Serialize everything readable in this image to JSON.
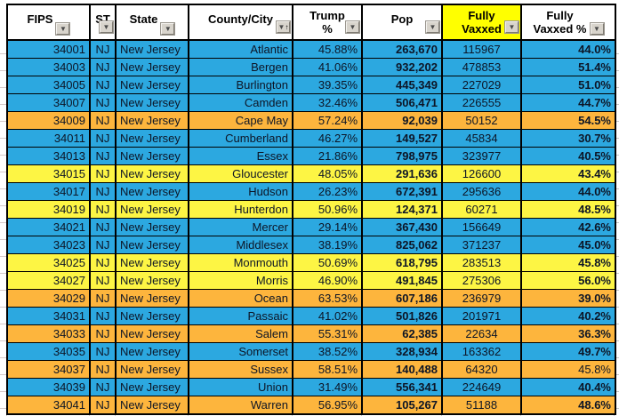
{
  "colors": {
    "blue": "#2ca8e0",
    "yellow": "#fdf544",
    "orange": "#fdb53d",
    "header_highlight": "#ffff00",
    "cell_border": "#000000",
    "gridline": "#c9c9c9"
  },
  "icons": {
    "filter_icon": "▼",
    "sort_asc_icon": "↑"
  },
  "table": {
    "columns": [
      {
        "id": "fips",
        "label": "FIPS",
        "align": "right",
        "btn": "inline"
      },
      {
        "id": "st",
        "label": "ST",
        "align": "center",
        "btn": "abs"
      },
      {
        "id": "state",
        "label": "State",
        "align": "left",
        "btn": "inline"
      },
      {
        "id": "county",
        "label": "County/City",
        "align": "right",
        "btn": "abs",
        "sorted": true
      },
      {
        "id": "trump",
        "label": "Trump\n%",
        "align": "right",
        "btn": "abs"
      },
      {
        "id": "pop",
        "label": "Pop",
        "align": "right",
        "btn": "abs",
        "bold": true
      },
      {
        "id": "vaxxed",
        "label": "Fully\nVaxxed",
        "align": "center",
        "btn": "abs",
        "header_bg": "#ffff00"
      },
      {
        "id": "vaxxedpct",
        "label": "Fully\nVaxxed %",
        "align": "right",
        "btn": "inline",
        "bold": true
      }
    ],
    "rows": [
      {
        "fips": "34001",
        "st": "NJ",
        "state": "New Jersey",
        "county": "Atlantic",
        "trump": "45.88%",
        "pop": "263,670",
        "vaxxed": "115967",
        "vaxxedpct": "44.0%",
        "color": "blue"
      },
      {
        "fips": "34003",
        "st": "NJ",
        "state": "New Jersey",
        "county": "Bergen",
        "trump": "41.06%",
        "pop": "932,202",
        "vaxxed": "478853",
        "vaxxedpct": "51.4%",
        "color": "blue"
      },
      {
        "fips": "34005",
        "st": "NJ",
        "state": "New Jersey",
        "county": "Burlington",
        "trump": "39.35%",
        "pop": "445,349",
        "vaxxed": "227029",
        "vaxxedpct": "51.0%",
        "color": "blue"
      },
      {
        "fips": "34007",
        "st": "NJ",
        "state": "New Jersey",
        "county": "Camden",
        "trump": "32.46%",
        "pop": "506,471",
        "vaxxed": "226555",
        "vaxxedpct": "44.7%",
        "color": "blue"
      },
      {
        "fips": "34009",
        "st": "NJ",
        "state": "New Jersey",
        "county": "Cape May",
        "trump": "57.24%",
        "pop": "92,039",
        "vaxxed": "50152",
        "vaxxedpct": "54.5%",
        "color": "orange"
      },
      {
        "fips": "34011",
        "st": "NJ",
        "state": "New Jersey",
        "county": "Cumberland",
        "trump": "46.27%",
        "pop": "149,527",
        "vaxxed": "45834",
        "vaxxedpct": "30.7%",
        "color": "blue"
      },
      {
        "fips": "34013",
        "st": "NJ",
        "state": "New Jersey",
        "county": "Essex",
        "trump": "21.86%",
        "pop": "798,975",
        "vaxxed": "323977",
        "vaxxedpct": "40.5%",
        "color": "blue"
      },
      {
        "fips": "34015",
        "st": "NJ",
        "state": "New Jersey",
        "county": "Gloucester",
        "trump": "48.05%",
        "pop": "291,636",
        "vaxxed": "126600",
        "vaxxedpct": "43.4%",
        "color": "yellow"
      },
      {
        "fips": "34017",
        "st": "NJ",
        "state": "New Jersey",
        "county": "Hudson",
        "trump": "26.23%",
        "pop": "672,391",
        "vaxxed": "295636",
        "vaxxedpct": "44.0%",
        "color": "blue"
      },
      {
        "fips": "34019",
        "st": "NJ",
        "state": "New Jersey",
        "county": "Hunterdon",
        "trump": "50.96%",
        "pop": "124,371",
        "vaxxed": "60271",
        "vaxxedpct": "48.5%",
        "color": "yellow"
      },
      {
        "fips": "34021",
        "st": "NJ",
        "state": "New Jersey",
        "county": "Mercer",
        "trump": "29.14%",
        "pop": "367,430",
        "vaxxed": "156649",
        "vaxxedpct": "42.6%",
        "color": "blue"
      },
      {
        "fips": "34023",
        "st": "NJ",
        "state": "New Jersey",
        "county": "Middlesex",
        "trump": "38.19%",
        "pop": "825,062",
        "vaxxed": "371237",
        "vaxxedpct": "45.0%",
        "color": "blue"
      },
      {
        "fips": "34025",
        "st": "NJ",
        "state": "New Jersey",
        "county": "Monmouth",
        "trump": "50.69%",
        "pop": "618,795",
        "vaxxed": "283513",
        "vaxxedpct": "45.8%",
        "color": "yellow"
      },
      {
        "fips": "34027",
        "st": "NJ",
        "state": "New Jersey",
        "county": "Morris",
        "trump": "46.90%",
        "pop": "491,845",
        "vaxxed": "275306",
        "vaxxedpct": "56.0%",
        "color": "yellow"
      },
      {
        "fips": "34029",
        "st": "NJ",
        "state": "New Jersey",
        "county": "Ocean",
        "trump": "63.53%",
        "pop": "607,186",
        "vaxxed": "236979",
        "vaxxedpct": "39.0%",
        "color": "orange"
      },
      {
        "fips": "34031",
        "st": "NJ",
        "state": "New Jersey",
        "county": "Passaic",
        "trump": "41.02%",
        "pop": "501,826",
        "vaxxed": "201971",
        "vaxxedpct": "40.2%",
        "color": "blue"
      },
      {
        "fips": "34033",
        "st": "NJ",
        "state": "New Jersey",
        "county": "Salem",
        "trump": "55.31%",
        "pop": "62,385",
        "vaxxed": "22634",
        "vaxxedpct": "36.3%",
        "color": "orange"
      },
      {
        "fips": "34035",
        "st": "NJ",
        "state": "New Jersey",
        "county": "Somerset",
        "trump": "38.52%",
        "pop": "328,934",
        "vaxxed": "163362",
        "vaxxedpct": "49.7%",
        "color": "blue"
      },
      {
        "fips": "34037",
        "st": "NJ",
        "state": "New Jersey",
        "county": "Sussex",
        "trump": "58.51%",
        "pop": "140,488",
        "vaxxed": "64320",
        "vaxxedpct": "45.8%",
        "color": "orange",
        "vaxxedpct_bold": false
      },
      {
        "fips": "34039",
        "st": "NJ",
        "state": "New Jersey",
        "county": "Union",
        "trump": "31.49%",
        "pop": "556,341",
        "vaxxed": "224649",
        "vaxxedpct": "40.4%",
        "color": "blue"
      },
      {
        "fips": "34041",
        "st": "NJ",
        "state": "New Jersey",
        "county": "Warren",
        "trump": "56.95%",
        "pop": "105,267",
        "vaxxed": "51188",
        "vaxxedpct": "48.6%",
        "color": "orange"
      }
    ]
  }
}
